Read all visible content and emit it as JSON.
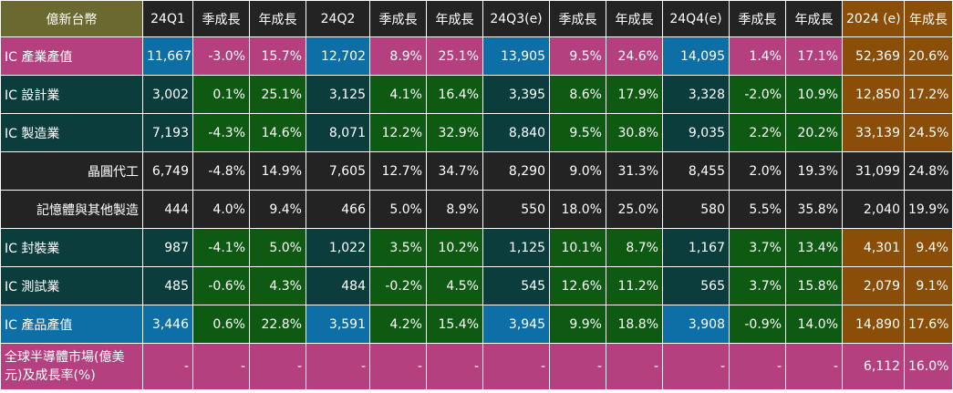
{
  "table": {
    "headers": [
      "億新台幣",
      "24Q1",
      "季成長",
      "年成長",
      "24Q2",
      "季成長",
      "年成長",
      "24Q3(e)",
      "季成長",
      "年成長",
      "24Q4(e)",
      "季成長",
      "年成長",
      "2024 (e)",
      "年成長"
    ],
    "rows": [
      {
        "label": "IC 產業產值",
        "cells": [
          "11,667",
          "-3.0%",
          "15.7%",
          "12,702",
          "8.9%",
          "25.1%",
          "13,905",
          "9.5%",
          "24.6%",
          "14,095",
          "1.4%",
          "17.1%",
          "52,369",
          "20.6%"
        ]
      },
      {
        "label": "IC 設計業",
        "cells": [
          "3,002",
          "0.1%",
          "25.1%",
          "3,125",
          "4.1%",
          "16.4%",
          "3,395",
          "8.6%",
          "17.9%",
          "3,328",
          "-2.0%",
          "10.9%",
          "12,850",
          "17.2%"
        ]
      },
      {
        "label": "IC 製造業",
        "cells": [
          "7,193",
          "-4.3%",
          "14.6%",
          "8,071",
          "12.2%",
          "32.9%",
          "8,840",
          "9.5%",
          "30.8%",
          "9,035",
          "2.2%",
          "20.2%",
          "33,139",
          "24.5%"
        ]
      },
      {
        "label": "晶圓代工",
        "cells": [
          "6,749",
          "-4.8%",
          "14.9%",
          "7,605",
          "12.7%",
          "34.7%",
          "8,290",
          "9.0%",
          "31.3%",
          "8,455",
          "2.0%",
          "19.3%",
          "31,099",
          "24.8%"
        ]
      },
      {
        "label": "記憶體與其他製造",
        "cells": [
          "444",
          "4.0%",
          "9.4%",
          "466",
          "5.0%",
          "8.9%",
          "550",
          "18.0%",
          "25.0%",
          "580",
          "5.5%",
          "35.8%",
          "2,040",
          "19.9%"
        ]
      },
      {
        "label": "IC 封裝業",
        "cells": [
          "987",
          "-4.1%",
          "5.0%",
          "1,022",
          "3.5%",
          "10.2%",
          "1,125",
          "10.1%",
          "8.7%",
          "1,167",
          "3.7%",
          "13.4%",
          "4,301",
          "9.4%"
        ]
      },
      {
        "label": "IC 測試業",
        "cells": [
          "485",
          "-0.6%",
          "4.3%",
          "484",
          "-0.2%",
          "4.5%",
          "545",
          "12.6%",
          "11.2%",
          "565",
          "3.7%",
          "15.8%",
          "2,079",
          "9.1%"
        ]
      },
      {
        "label": "IC 產品產值",
        "cells": [
          "3,446",
          "0.6%",
          "22.8%",
          "3,591",
          "4.2%",
          "15.4%",
          "3,945",
          "9.9%",
          "18.8%",
          "3,908",
          "-0.9%",
          "14.0%",
          "14,890",
          "17.6%"
        ]
      },
      {
        "label": "全球半導體市場(億美元)及成長率(%)",
        "cells": [
          "-",
          "-",
          "-",
          "-",
          "-",
          "-",
          "-",
          "-",
          "-",
          "-",
          "-",
          "-",
          "6,112",
          "16.0%"
        ]
      }
    ]
  }
}
